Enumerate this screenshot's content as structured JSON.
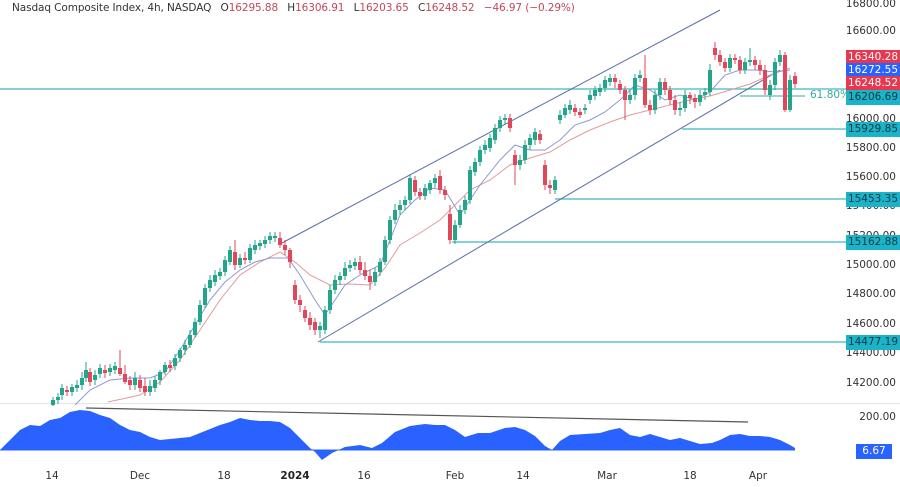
{
  "header": {
    "symbol": "Nasdaq Composite Index, 4h, NASDAQ",
    "open_label": "O",
    "open": "16295.88",
    "high_label": "H",
    "high": "16306.91",
    "low_label": "L",
    "low": "16203.65",
    "close_label": "C",
    "close": "16248.52",
    "change": "−46.97 (−0.29%)"
  },
  "price_axis": {
    "ticks": [
      "16800.00",
      "16600.00",
      "16000.00",
      "15800.00",
      "15600.00",
      "15400.00",
      "15200.00",
      "15000.00",
      "14800.00",
      "14600.00",
      "14400.00",
      "14200.00"
    ],
    "tags": [
      {
        "value": "16340.28",
        "color": "#e8384f"
      },
      {
        "value": "16272.55",
        "color": "#2962ff"
      },
      {
        "value": "16248.52",
        "color": "#e8384f"
      },
      {
        "value": "16206.69",
        "color": "#1ab3c8"
      },
      {
        "value": "15929.85",
        "color": "#1ab3c8"
      },
      {
        "value": "15453.35",
        "color": "#1ab3c8"
      },
      {
        "value": "15162.88",
        "color": "#1ab3c8"
      },
      {
        "value": "14477.19",
        "color": "#1ab3c8"
      }
    ]
  },
  "fib_label": "61.80%",
  "indicator": {
    "tick": "200.00",
    "value": "6.67",
    "color": "#2962ff"
  },
  "time_axis": [
    "14",
    "Dec",
    "18",
    "2024",
    "16",
    "Feb",
    "14",
    "Mar",
    "18",
    "Apr"
  ],
  "chart_data": {
    "type": "candlestick",
    "title": "Nasdaq Composite Index, 4h, NASDAQ",
    "ohlc_last": {
      "open": 16295.88,
      "high": 16306.91,
      "low": 16203.65,
      "close": 16248.52,
      "change": -46.97,
      "change_pct": -0.29
    },
    "ylim": [
      14100,
      16850
    ],
    "y_ticks": [
      14200,
      14400,
      14600,
      14800,
      15000,
      15200,
      15400,
      15600,
      15800,
      16000,
      16200,
      16400,
      16600,
      16800
    ],
    "x_ticks": [
      "14",
      "Dec",
      "18",
      "2024",
      "16",
      "Feb",
      "14",
      "Mar",
      "18",
      "Apr"
    ],
    "horizontal_levels": [
      16206.69,
      15929.85,
      15453.35,
      15162.88,
      14477.19
    ],
    "price_tags": {
      "high_marker": 16340.28,
      "ma_fast": 16272.55,
      "last": 16248.52
    },
    "fib_retracement": {
      "level": "61.80%",
      "price": 16206.69
    },
    "ascending_channel": {
      "lower_start": [
        14477,
        "2024-01-05"
      ],
      "upper_end": [
        16800,
        "2024-03-20"
      ]
    },
    "moving_averages": [
      {
        "name": "fast MA",
        "color": "#7b8fd6"
      },
      {
        "name": "slow MA",
        "color": "#e08a8a"
      }
    ],
    "indicator_pane": {
      "type": "area",
      "color": "#2962ff",
      "axis_tick": 200.0,
      "last_value": 6.67,
      "divergence_line": "descending trendline across highs"
    },
    "grid": false
  }
}
